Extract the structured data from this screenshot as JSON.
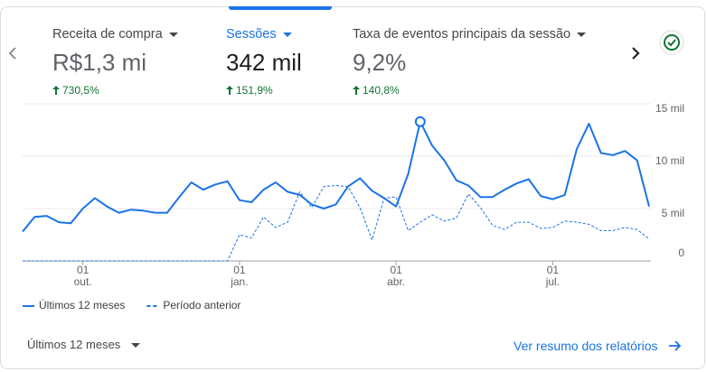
{
  "metrics": [
    {
      "label": "Receita de compra",
      "value": "R$1,3 mi",
      "change": "730,5%"
    },
    {
      "label": "Sessões",
      "value": "342 mil",
      "change": "151,9%"
    },
    {
      "label": "Taxa de eventos principais da sessão",
      "value": "9,2%",
      "change": "140,8%"
    }
  ],
  "chart_data": {
    "type": "line",
    "categories": [
      null,
      null,
      null,
      null,
      null,
      "01 out.",
      null,
      null,
      null,
      null,
      null,
      null,
      null,
      null,
      null,
      null,
      null,
      null,
      "01 jan.",
      null,
      null,
      null,
      null,
      null,
      null,
      null,
      null,
      null,
      null,
      null,
      null,
      "01 abr.",
      null,
      null,
      null,
      null,
      null,
      null,
      null,
      null,
      null,
      null,
      null,
      null,
      "01 jul.",
      null,
      null,
      null,
      null,
      null,
      null,
      null,
      null
    ],
    "series": [
      {
        "name": "Últimos 12 meses",
        "color": "#1a73e8",
        "style": "solid",
        "values": [
          2800,
          4200,
          4300,
          3700,
          3600,
          5000,
          6000,
          5200,
          4600,
          4900,
          4800,
          4600,
          4600,
          6100,
          7500,
          6800,
          7300,
          7600,
          5800,
          5600,
          6800,
          7500,
          6600,
          6300,
          5400,
          5000,
          5400,
          7100,
          7900,
          6700,
          6000,
          5200,
          8300,
          13300,
          11000,
          9600,
          7700,
          7200,
          6100,
          6100,
          6800,
          7400,
          7800,
          6200,
          5900,
          6300,
          10700,
          13100,
          10300,
          10100,
          10500,
          9600,
          5200
        ]
      },
      {
        "name": "Período anterior",
        "color": "#1a73e8",
        "style": "dashed",
        "values": [
          0,
          0,
          0,
          0,
          0,
          0,
          0,
          0,
          0,
          0,
          0,
          0,
          0,
          0,
          0,
          0,
          0,
          0,
          2500,
          2200,
          4200,
          3200,
          3700,
          6600,
          5100,
          7100,
          7200,
          7100,
          5100,
          2000,
          6000,
          6100,
          2900,
          3700,
          4400,
          3800,
          4100,
          6400,
          5100,
          3400,
          3000,
          3700,
          3700,
          3100,
          3200,
          3800,
          3700,
          3500,
          2900,
          2900,
          3200,
          3000,
          2100
        ]
      }
    ],
    "highlight_index": 33,
    "ylim": [
      0,
      15000
    ],
    "yticks": [
      0,
      {
        "value": 5000,
        "label": "5 mil"
      },
      {
        "value": 10000,
        "label": "10 mil"
      },
      {
        "value": 15000,
        "label": "15 mil"
      }
    ],
    "grid": true,
    "legend": "bottom-left"
  },
  "footer": {
    "period": "Últimos 12 meses",
    "link": "Ver resumo dos relatórios"
  }
}
